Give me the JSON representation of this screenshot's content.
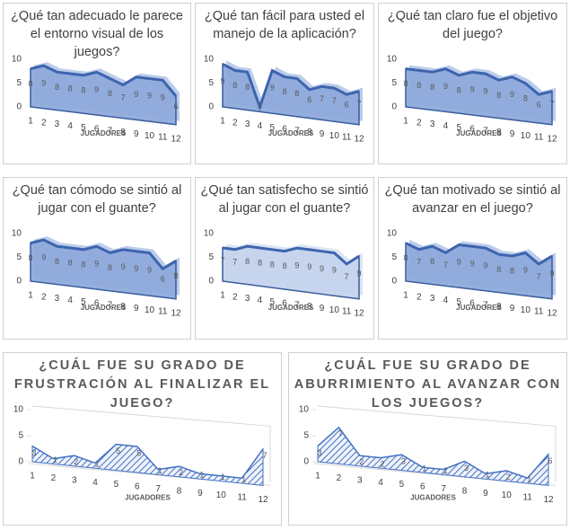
{
  "chart_data": [
    {
      "type": "area",
      "title": "¿Qué tan adecuado le parece el entorno visual de los juegos?",
      "xlabel": "JUGADORES",
      "categories": [
        "1",
        "2",
        "3",
        "4",
        "5",
        "6",
        "7",
        "8",
        "9",
        "10",
        "11",
        "12"
      ],
      "values": [
        8,
        9,
        8,
        8,
        8,
        9,
        8,
        7,
        9,
        9,
        9,
        6
      ],
      "ylim": [
        0,
        10
      ],
      "yticks": [
        0,
        5,
        10
      ],
      "color": "#8faadc",
      "fill_pattern": "solid"
    },
    {
      "type": "area",
      "title": "¿Qué tan fácil para usted el manejo de la aplicación?",
      "xlabel": "JUGADORES",
      "categories": [
        "1",
        "2",
        "3",
        "4",
        "5",
        "6",
        "7",
        "8",
        "9",
        "10",
        "11",
        "12"
      ],
      "values": [
        9,
        8,
        8,
        1,
        9,
        8,
        8,
        6,
        7,
        7,
        6,
        7
      ],
      "ylim": [
        0,
        10
      ],
      "yticks": [
        0,
        5,
        10
      ],
      "color": "#8faadc",
      "fill_pattern": "solid"
    },
    {
      "type": "area",
      "title": "¿Qué tan claro fue el objetivo del juego?",
      "xlabel": "JUGADORES",
      "categories": [
        "1",
        "2",
        "3",
        "4",
        "5",
        "6",
        "7",
        "8",
        "9",
        "10",
        "11",
        "12"
      ],
      "values": [
        8,
        8,
        8,
        9,
        8,
        9,
        9,
        8,
        9,
        8,
        6,
        7
      ],
      "ylim": [
        0,
        10
      ],
      "yticks": [
        0,
        5,
        10
      ],
      "color": "#8faadc",
      "fill_pattern": "solid"
    },
    {
      "type": "area",
      "title": "¿Qué tan cómodo se sintió al jugar con el guante?",
      "xlabel": "JUGADORES",
      "categories": [
        "1",
        "2",
        "3",
        "4",
        "5",
        "6",
        "7",
        "8",
        "9",
        "10",
        "11",
        "12"
      ],
      "values": [
        8,
        9,
        8,
        8,
        8,
        9,
        8,
        9,
        9,
        9,
        6,
        8
      ],
      "ylim": [
        0,
        10
      ],
      "yticks": [
        0,
        5,
        10
      ],
      "color": "#8faadc",
      "fill_pattern": "solid"
    },
    {
      "type": "area",
      "title": "¿Qué tan satisfecho se sintió al jugar con el guante?",
      "xlabel": "JUGADORES",
      "categories": [
        "1",
        "2",
        "3",
        "4",
        "5",
        "6",
        "7",
        "8",
        "9",
        "10",
        "11",
        "12"
      ],
      "values": [
        7,
        7,
        8,
        8,
        8,
        8,
        9,
        9,
        9,
        9,
        7,
        9
      ],
      "ylim": [
        0,
        10
      ],
      "yticks": [
        0,
        5,
        10
      ],
      "color": "#c5d4ee",
      "fill_pattern": "solid"
    },
    {
      "type": "area",
      "title": "¿Qué tan motivado se sintió al avanzar en el juego?",
      "xlabel": "JUGADORES",
      "categories": [
        "1",
        "2",
        "3",
        "4",
        "5",
        "6",
        "7",
        "8",
        "9",
        "10",
        "11",
        "12"
      ],
      "values": [
        8,
        7,
        8,
        7,
        9,
        9,
        9,
        8,
        8,
        9,
        7,
        9
      ],
      "ylim": [
        0,
        10
      ],
      "yticks": [
        0,
        5,
        10
      ],
      "color": "#8faadc",
      "fill_pattern": "solid"
    },
    {
      "type": "area",
      "title": "¿CUÁL FUE SU GRADO DE FRUSTRACIÓN AL FINALIZAR EL JUEGO?",
      "xlabel": "JUGADORES",
      "categories": [
        "1",
        "2",
        "3",
        "4",
        "5",
        "6",
        "7",
        "8",
        "9",
        "10",
        "11",
        "12"
      ],
      "values": [
        3,
        1,
        2,
        1,
        5,
        5,
        1,
        2,
        1,
        1,
        1,
        7
      ],
      "ylim": [
        0,
        10
      ],
      "yticks": [
        0,
        5,
        10
      ],
      "color": "#4472c4",
      "fill_pattern": "hatch"
    },
    {
      "type": "area",
      "title": "¿CUÁL FUE SU GRADO DE ABURRIMIENTO AL AVANZAR CON LOS JUEGOS?",
      "xlabel": "JUGADORES",
      "categories": [
        "1",
        "2",
        "3",
        "4",
        "5",
        "6",
        "7",
        "8",
        "9",
        "10",
        "11",
        "12"
      ],
      "values": [
        3,
        7,
        2,
        2,
        3,
        1,
        1,
        3,
        1,
        2,
        1,
        6
      ],
      "ylim": [
        0,
        10
      ],
      "yticks": [
        0,
        5,
        10
      ],
      "color": "#4472c4",
      "fill_pattern": "hatch"
    }
  ]
}
